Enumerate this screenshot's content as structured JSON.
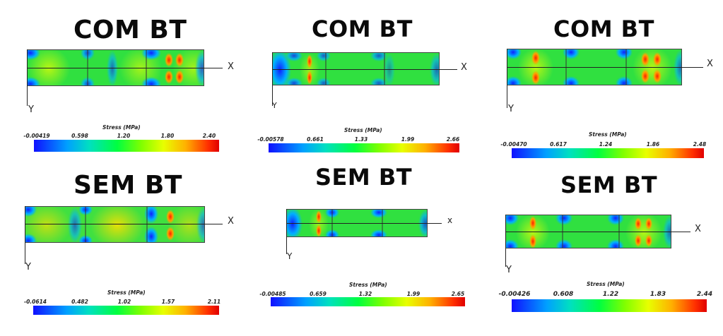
{
  "panels": [
    {
      "title": "COM BT",
      "x_label": "X",
      "y_label": "Y",
      "legend_title": "Stress (MPa)",
      "ticks": [
        "-0.00419",
        "0.598",
        "1.20",
        "1.80",
        "2.40"
      ]
    },
    {
      "title": "COM BT",
      "x_label": "X",
      "y_label": "Y",
      "legend_title": "Stress (MPa)",
      "ticks": [
        "-0.00578",
        "0.661",
        "1.33",
        "1.99",
        "2.66"
      ]
    },
    {
      "title": "COM BT",
      "x_label": "X",
      "y_label": "Y",
      "legend_title": "Stress (MPa)",
      "ticks": [
        "-0.00470",
        "0.617",
        "1.24",
        "1.86",
        "2.48"
      ]
    },
    {
      "title": "SEM BT",
      "x_label": "X",
      "y_label": "Y",
      "legend_title": "Stress (MPa)",
      "ticks": [
        "-0.0614",
        "0.482",
        "1.02",
        "1.57",
        "2.11"
      ]
    },
    {
      "title": "SEM BT",
      "x_label": "x",
      "y_label": "Y",
      "legend_title": "Stress (MPa)",
      "ticks": [
        "-0.00485",
        "0.659",
        "1.32",
        "1.99",
        "2.65"
      ]
    },
    {
      "title": "SEM BT",
      "x_label": "X",
      "y_label": "Y",
      "legend_title": "Stress (MPa)",
      "ticks": [
        "-0.00426",
        "0.608",
        "1.22",
        "1.83",
        "2.44"
      ]
    }
  ]
}
